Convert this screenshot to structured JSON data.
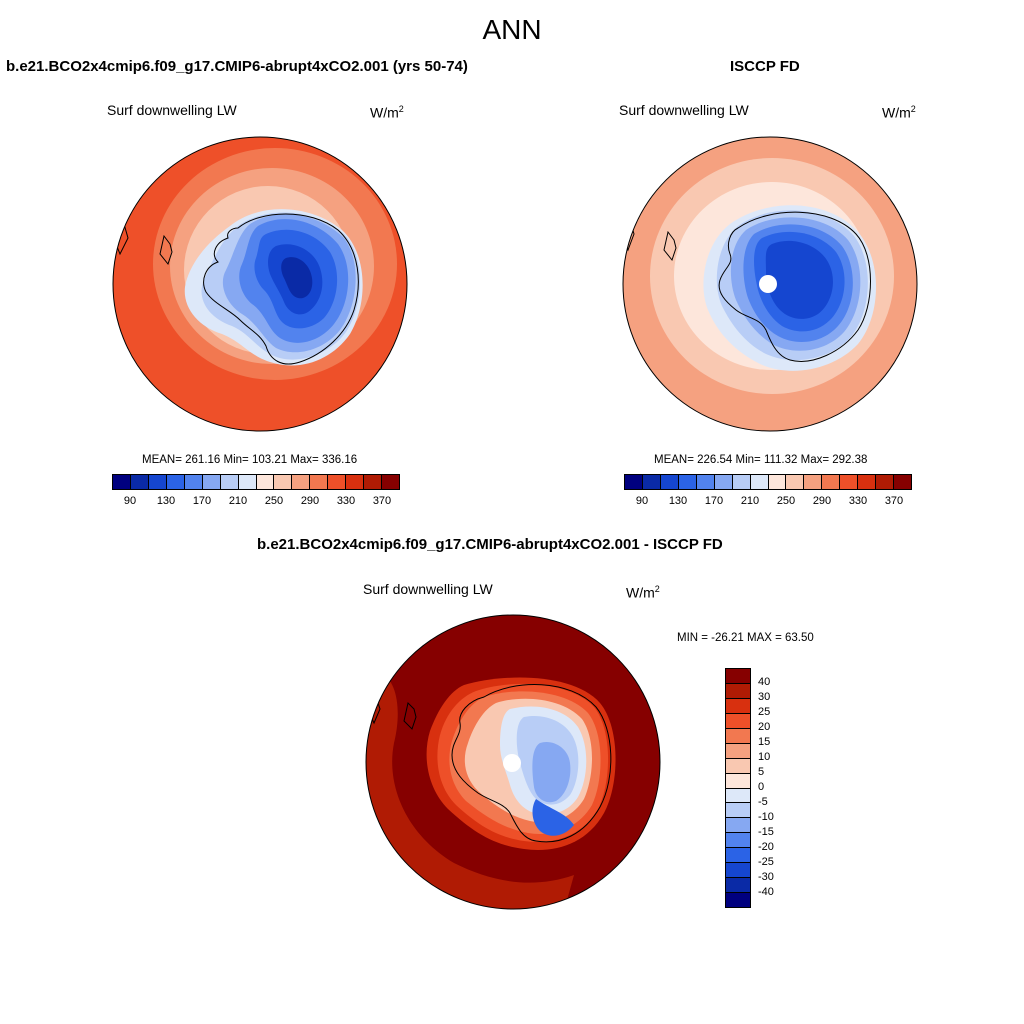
{
  "title": "ANN",
  "colors": {
    "seq": [
      "#00007f",
      "#0a2aa6",
      "#1546d0",
      "#2b63e6",
      "#5283ee",
      "#86a8f2",
      "#b8cdf6",
      "#dde8f9",
      "#fde6db",
      "#f9c8b1",
      "#f5a180",
      "#f27850",
      "#ee5029",
      "#d8300f",
      "#b01b04",
      "#860000"
    ],
    "diff": [
      "#860000",
      "#b01b04",
      "#d8300f",
      "#ee5029",
      "#f27850",
      "#f5a180",
      "#f9c8b1",
      "#fde6db",
      "#dde8f9",
      "#b8cdf6",
      "#86a8f2",
      "#5283ee",
      "#2b63e6",
      "#1546d0",
      "#0a2aa6",
      "#00007f"
    ]
  },
  "panels": {
    "left": {
      "case": "b.e21.BCO2x4cmip6.f09_g17.CMIP6-abrupt4xCO2.001 (yrs 50-74)",
      "variable": "Surf downwelling LW",
      "units": "W/m",
      "units_sup": "2",
      "stats": "MEAN= 261.16  Min= 103.21  Max= 336.16"
    },
    "right": {
      "case": "ISCCP FD",
      "variable": "Surf downwelling LW",
      "units": "W/m",
      "units_sup": "2",
      "stats": "MEAN= 226.54  Min= 111.32  Max= 292.38"
    },
    "diff": {
      "case": "b.e21.BCO2x4cmip6.f09_g17.CMIP6-abrupt4xCO2.001 - ISCCP FD",
      "variable": "Surf downwelling LW",
      "units": "W/m",
      "units_sup": "2",
      "stats": "MIN = -26.21 MAX =  63.50"
    }
  },
  "chart_data": [
    {
      "type": "heatmap",
      "projection": "south-polar-stereographic",
      "title": "b.e21.BCO2x4cmip6.f09_g17.CMIP6-abrupt4xCO2.001 (yrs 50-74)",
      "variable": "Surf downwelling LW",
      "units": "W/m2",
      "mean": 261.16,
      "min": 103.21,
      "max": 336.16,
      "colorbar_ticks": [
        "90",
        "130",
        "170",
        "210",
        "250",
        "290",
        "330",
        "370"
      ],
      "levels": [
        80,
        90,
        110,
        130,
        150,
        170,
        190,
        210,
        230,
        250,
        270,
        290,
        310,
        330,
        350,
        370,
        390
      ]
    },
    {
      "type": "heatmap",
      "projection": "south-polar-stereographic",
      "title": "ISCCP FD",
      "variable": "Surf downwelling LW",
      "units": "W/m2",
      "mean": 226.54,
      "min": 111.32,
      "max": 292.38,
      "colorbar_ticks": [
        "90",
        "130",
        "170",
        "210",
        "250",
        "290",
        "330",
        "370"
      ],
      "levels": [
        80,
        90,
        110,
        130,
        150,
        170,
        190,
        210,
        230,
        250,
        270,
        290,
        310,
        330,
        350,
        370,
        390
      ]
    },
    {
      "type": "heatmap",
      "projection": "south-polar-stereographic",
      "title": "b.e21.BCO2x4cmip6.f09_g17.CMIP6-abrupt4xCO2.001 - ISCCP FD",
      "variable": "Surf downwelling LW",
      "units": "W/m2",
      "min": -26.21,
      "max": 63.5,
      "colorbar_ticks": [
        "40",
        "30",
        "25",
        "20",
        "15",
        "10",
        "5",
        "0",
        "-5",
        "-10",
        "-15",
        "-20",
        "-25",
        "-30",
        "-40"
      ]
    }
  ]
}
